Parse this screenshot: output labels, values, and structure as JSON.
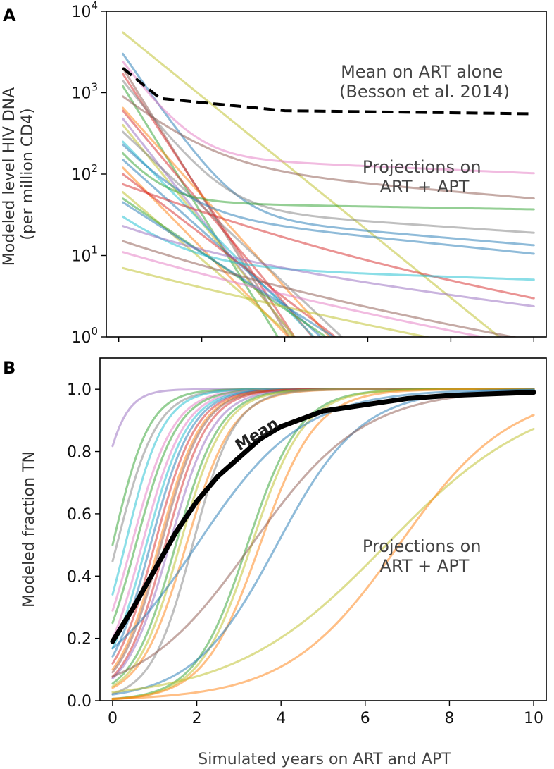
{
  "chart_data": [
    {
      "panel": "A",
      "type": "line",
      "yscale": "log",
      "ylabel": "Modeled level HIV DNA\n(per million CD4)",
      "xlim": [
        -0.3,
        10.3
      ],
      "ylim": [
        1,
        10000
      ],
      "y_tick_labels": [
        {
          "base": "10",
          "exp": "0"
        },
        {
          "base": "10",
          "exp": "1"
        },
        {
          "base": "10",
          "exp": "2"
        },
        {
          "base": "10",
          "exp": "3"
        },
        {
          "base": "10",
          "exp": "4"
        }
      ],
      "y_tick_values": [
        1,
        10,
        100,
        1000,
        10000
      ],
      "x_ticks": [
        0,
        2,
        4,
        6,
        8,
        10
      ],
      "annotations": {
        "reference": [
          "Mean on ART alone",
          "(Besson et al. 2014)"
        ],
        "projections": [
          "Projections on",
          "ART + APT"
        ]
      },
      "reference_series": {
        "name": "Mean on ART alone (Besson et al. 2014)",
        "x": [
          0.1,
          1.0,
          4.0,
          10.0
        ],
        "y": [
          2000,
          850,
          600,
          550
        ]
      },
      "decay_series": [
        {
          "y0": 5500,
          "fast": 0.95,
          "slow": 0.45,
          "frac": 0.0,
          "color": "#bcbd22"
        },
        {
          "y0": 3000,
          "fast": 1.7,
          "slow": 0.1,
          "frac": 0.012,
          "color": "#1f77b4"
        },
        {
          "y0": 2400,
          "fast": 1.6,
          "slow": 0.05,
          "frac": 0.07,
          "color": "#e377c2"
        },
        {
          "y0": 2000,
          "fast": 1.9,
          "slow": 0.6,
          "frac": 0.0,
          "color": "#8c564b"
        },
        {
          "y0": 1700,
          "fast": 1.8,
          "slow": 0.6,
          "frac": 0.0,
          "color": "#d62728"
        },
        {
          "y0": 1400,
          "fast": 1.5,
          "slow": 0.08,
          "frac": 0.03,
          "color": "#7f7f7f"
        },
        {
          "y0": 1200,
          "fast": 1.9,
          "slow": 0.6,
          "frac": 0.0,
          "color": "#2ca02c"
        },
        {
          "y0": 900,
          "fast": 1.0,
          "slow": 0.1,
          "frac": 0.15,
          "color": "#8c564b"
        },
        {
          "y0": 650,
          "fast": 1.3,
          "slow": 0.6,
          "frac": 0.0,
          "color": "#ff7f0e"
        },
        {
          "y0": 600,
          "fast": 1.4,
          "slow": 0.6,
          "frac": 0.0,
          "color": "#d62728"
        },
        {
          "y0": 480,
          "fast": 1.5,
          "slow": 0.6,
          "frac": 0.0,
          "color": "#9467bd"
        },
        {
          "y0": 400,
          "fast": 1.45,
          "slow": 0.6,
          "frac": 0.0,
          "color": "#bcbd22"
        },
        {
          "y0": 330,
          "fast": 1.1,
          "slow": 0.6,
          "frac": 0.0,
          "color": "#7f7f7f"
        },
        {
          "y0": 250,
          "fast": 1.2,
          "slow": 0.6,
          "frac": 0.0,
          "color": "#17becf"
        },
        {
          "y0": 230,
          "fast": 1.3,
          "slow": 0.12,
          "frac": 0.15,
          "color": "#1f77b4"
        },
        {
          "y0": 180,
          "fast": 1.6,
          "slow": 0.02,
          "frac": 0.25,
          "color": "#2ca02c"
        },
        {
          "y0": 150,
          "fast": 1.05,
          "slow": 0.6,
          "frac": 0.0,
          "color": "#1f77b4"
        },
        {
          "y0": 120,
          "fast": 1.2,
          "slow": 0.6,
          "frac": 0.0,
          "color": "#ff7f0e"
        },
        {
          "y0": 100,
          "fast": 0.9,
          "slow": 0.6,
          "frac": 0.0,
          "color": "#d62728"
        },
        {
          "y0": 75,
          "fast": 0.5,
          "slow": 0.2,
          "frac": 0.25,
          "color": "#d62728"
        },
        {
          "y0": 60,
          "fast": 1.0,
          "slow": 0.6,
          "frac": 0.0,
          "color": "#bcbd22"
        },
        {
          "y0": 50,
          "fast": 0.8,
          "slow": 0.6,
          "frac": 0.0,
          "color": "#2ca02c"
        },
        {
          "y0": 45,
          "fast": 0.75,
          "slow": 0.6,
          "frac": 0.0,
          "color": "#1f77b4"
        },
        {
          "y0": 30,
          "fast": 1.0,
          "slow": 0.04,
          "frac": 0.25,
          "color": "#17becf"
        },
        {
          "y0": 23,
          "fast": 0.6,
          "slow": 0.15,
          "frac": 0.45,
          "color": "#9467bd"
        },
        {
          "y0": 15,
          "fast": 0.5,
          "slow": 0.2,
          "frac": 0.4,
          "color": "#8c564b"
        },
        {
          "y0": 11,
          "fast": 0.45,
          "slow": 0.2,
          "frac": 0.45,
          "color": "#e377c2"
        },
        {
          "y0": 7,
          "fast": 0.4,
          "slow": 0.2,
          "frac": 0.5,
          "color": "#bcbd22"
        }
      ]
    },
    {
      "panel": "B",
      "type": "line",
      "ylabel": "Modeled fraction TN",
      "xlabel": "Simulated years on ART and APT",
      "xlim": [
        -0.3,
        10.3
      ],
      "ylim": [
        0.0,
        1.1
      ],
      "x_ticks": [
        0,
        2,
        4,
        6,
        8,
        10
      ],
      "x_tick_labels": [
        "0",
        "2",
        "4",
        "6",
        "8",
        "10"
      ],
      "y_ticks": [
        0.0,
        0.2,
        0.4,
        0.6,
        0.8,
        1.0
      ],
      "y_tick_labels": [
        "0.0",
        "0.2",
        "0.4",
        "0.6",
        "0.8",
        "1.0"
      ],
      "annotations": {
        "mean": "Mean",
        "projections": [
          "Projections on",
          "ART + APT"
        ]
      },
      "mean_series": {
        "name": "Mean",
        "x": [
          0,
          0.5,
          1,
          1.5,
          2,
          2.5,
          3,
          3.5,
          4,
          5,
          6,
          7,
          8,
          9,
          10
        ],
        "y": [
          0.19,
          0.3,
          0.42,
          0.54,
          0.64,
          0.72,
          0.78,
          0.84,
          0.88,
          0.93,
          0.95,
          0.97,
          0.98,
          0.985,
          0.99
        ]
      },
      "logistic_series": [
        {
          "k": 3.0,
          "t50": -0.5,
          "color": "#9467bd"
        },
        {
          "k": 2.3,
          "t50": 0.0,
          "color": "#2ca02c"
        },
        {
          "k": 2.1,
          "t50": 0.1,
          "color": "#7f7f7f"
        },
        {
          "k": 2.2,
          "t50": 0.3,
          "color": "#17becf"
        },
        {
          "k": 2.0,
          "t50": 0.45,
          "color": "#e377c2"
        },
        {
          "k": 2.0,
          "t50": 0.55,
          "color": "#2ca02c"
        },
        {
          "k": 2.0,
          "t50": 0.7,
          "color": "#e377c2"
        },
        {
          "k": 2.0,
          "t50": 0.8,
          "color": "#17becf"
        },
        {
          "k": 2.0,
          "t50": 0.9,
          "color": "#1f77b4"
        },
        {
          "k": 2.0,
          "t50": 1.0,
          "color": "#d62728"
        },
        {
          "k": 2.0,
          "t50": 1.1,
          "color": "#ff7f0e"
        },
        {
          "k": 2.0,
          "t50": 1.15,
          "color": "#8c564b"
        },
        {
          "k": 2.0,
          "t50": 1.25,
          "color": "#d62728"
        },
        {
          "k": 1.9,
          "t50": 1.35,
          "color": "#9467bd"
        },
        {
          "k": 1.9,
          "t50": 1.5,
          "color": "#2ca02c"
        },
        {
          "k": 1.9,
          "t50": 1.6,
          "color": "#bcbd22"
        },
        {
          "k": 1.8,
          "t50": 1.75,
          "color": "#ff7f0e"
        },
        {
          "k": 2.0,
          "t50": 1.9,
          "color": "#7f7f7f"
        },
        {
          "k": 1.6,
          "t50": 3.2,
          "color": "#2ca02c"
        },
        {
          "k": 1.6,
          "t50": 3.3,
          "color": "#bcbd22"
        },
        {
          "k": 1.5,
          "t50": 3.5,
          "color": "#ff7f0e"
        },
        {
          "k": 0.8,
          "t50": 2.0,
          "color": "#1f77b4"
        },
        {
          "k": 1.0,
          "t50": 3.9,
          "color": "#1f77b4"
        },
        {
          "k": 0.75,
          "t50": 3.3,
          "color": "#8c564b"
        },
        {
          "k": 0.55,
          "t50": 6.5,
          "color": "#bcbd22"
        },
        {
          "k": 0.75,
          "t50": 6.8,
          "color": "#ff7f0e"
        }
      ]
    }
  ]
}
